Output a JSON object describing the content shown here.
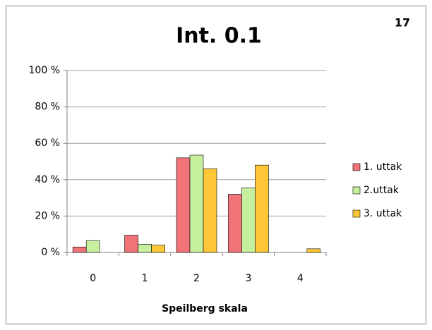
{
  "chart_data": {
    "type": "bar",
    "title": "Int. 0.1",
    "annotation": "17",
    "xlabel": "Speilberg skala",
    "categories": [
      "0",
      "1",
      "2",
      "3",
      "4"
    ],
    "series": [
      {
        "name": "1. uttak",
        "color": "#f07378",
        "values": [
          3,
          9.5,
          52,
          32,
          0
        ]
      },
      {
        "name": "2.uttak",
        "color": "#c6ef9e",
        "values": [
          6.5,
          4.5,
          53.5,
          35.5,
          0
        ]
      },
      {
        "name": "3. uttak",
        "color": "#ffc738",
        "values": [
          0,
          4,
          46,
          48,
          2
        ]
      }
    ],
    "ylim": [
      0,
      100
    ],
    "yticks": [
      {
        "value": 0,
        "label": "0 %"
      },
      {
        "value": 20,
        "label": "20 %"
      },
      {
        "value": 40,
        "label": "40 %"
      },
      {
        "value": 60,
        "label": "60 %"
      },
      {
        "value": 80,
        "label": "80 %"
      },
      {
        "value": 100,
        "label": "100 %"
      }
    ],
    "grid": true,
    "legend": "right"
  }
}
